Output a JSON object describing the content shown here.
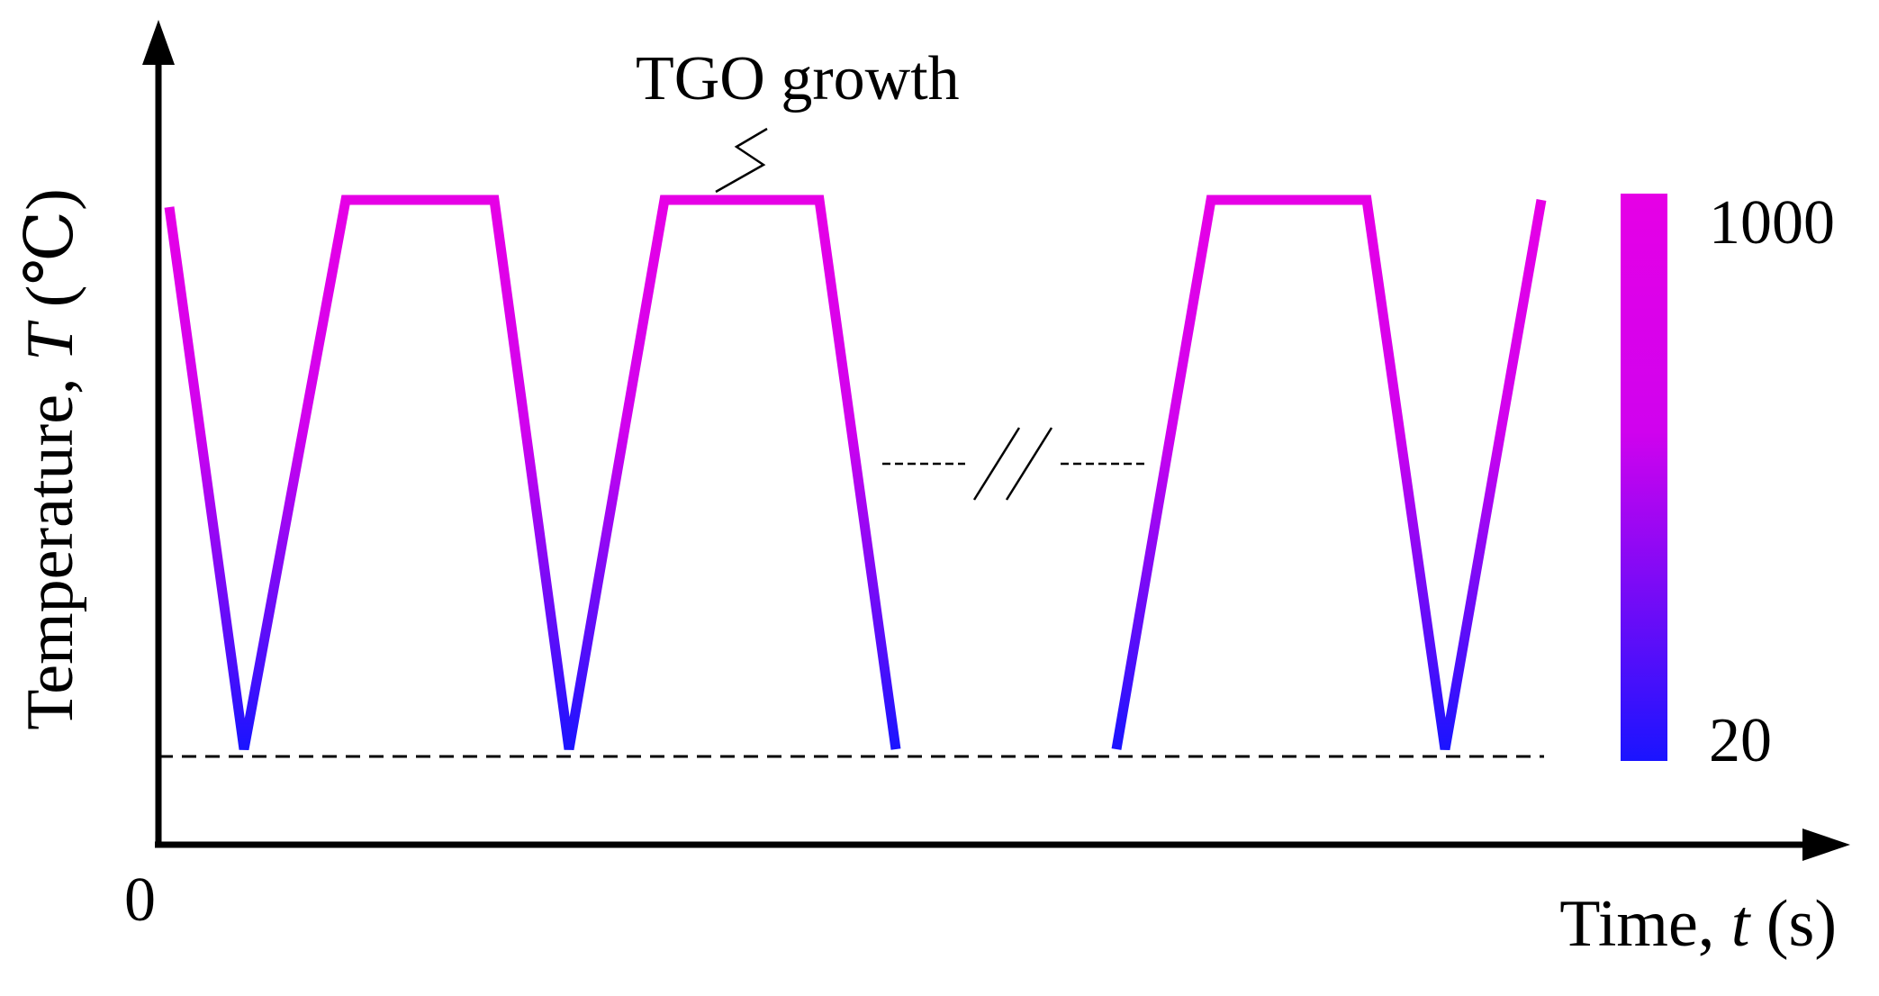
{
  "diagram": {
    "annotation": "TGO growth",
    "origin_label": "0",
    "x_axis": {
      "label_prefix": "Time, ",
      "label_var": "t",
      "label_unit": " (s)"
    },
    "y_axis": {
      "label_prefix": "Temperature, ",
      "label_var": "T",
      "label_unit": " (℃)"
    },
    "colorbar": {
      "max_label": "1000",
      "min_label": "20",
      "max_color": "#e600e6",
      "min_color": "#1a14ff"
    },
    "profile": {
      "max_temperature": 1000,
      "min_temperature": 20,
      "visible_cycles": 4,
      "axis_break": true
    }
  }
}
